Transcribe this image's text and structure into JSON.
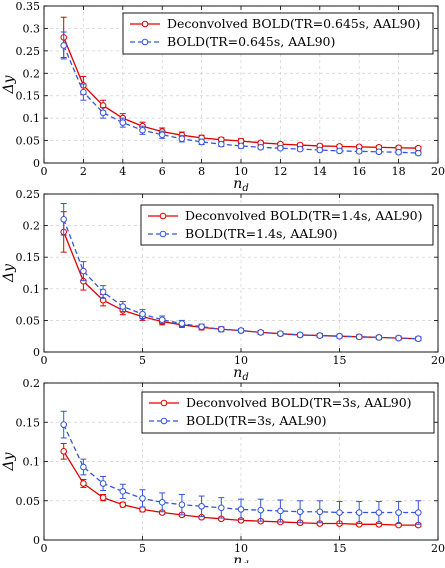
{
  "chart_data": [
    {
      "type": "line",
      "xlabel": "n_d",
      "ylabel": "Δy",
      "xlim": [
        0,
        20
      ],
      "ylim": [
        0,
        0.35
      ],
      "xticks": [
        "0",
        "2",
        "4",
        "6",
        "8",
        "10",
        "12",
        "14",
        "16",
        "18",
        "20"
      ],
      "yticks": [
        "0",
        "0.05",
        "0.1",
        "0.15",
        "0.2",
        "0.25",
        "0.3",
        "0.35"
      ],
      "grid": true,
      "legend_position": "top-right",
      "series": [
        {
          "name": "Deconvolved BOLD(TR=0.645s, AAL90)",
          "color": "#e00000",
          "style": "solid",
          "x": [
            1,
            2,
            3,
            4,
            5,
            6,
            7,
            8,
            9,
            10,
            11,
            12,
            13,
            14,
            15,
            16,
            17,
            18,
            19
          ],
          "y": [
            0.28,
            0.173,
            0.128,
            0.1,
            0.082,
            0.07,
            0.062,
            0.056,
            0.052,
            0.049,
            0.045,
            0.042,
            0.04,
            0.038,
            0.037,
            0.036,
            0.035,
            0.034,
            0.033
          ],
          "err": [
            0.045,
            0.02,
            0.012,
            0.01,
            0.009,
            0.008,
            0.007,
            0.006,
            0.005,
            0.005,
            0.004,
            0.004,
            0.004,
            0.004,
            0.004,
            0.004,
            0.004,
            0.004,
            0.004
          ]
        },
        {
          "name": "BOLD(TR=0.645s, AAL90)",
          "color": "#3355dd",
          "style": "dashed",
          "x": [
            1,
            2,
            3,
            4,
            5,
            6,
            7,
            8,
            9,
            10,
            11,
            12,
            13,
            14,
            15,
            16,
            17,
            18,
            19
          ],
          "y": [
            0.262,
            0.158,
            0.112,
            0.09,
            0.073,
            0.063,
            0.054,
            0.047,
            0.042,
            0.038,
            0.035,
            0.033,
            0.031,
            0.029,
            0.027,
            0.026,
            0.025,
            0.024,
            0.022
          ],
          "err": [
            0.03,
            0.018,
            0.012,
            0.01,
            0.009,
            0.008,
            0.007,
            0.006,
            0.005,
            0.005,
            0.004,
            0.004,
            0.004,
            0.004,
            0.004,
            0.004,
            0.004,
            0.004,
            0.004
          ]
        }
      ]
    },
    {
      "type": "line",
      "xlabel": "n_d",
      "ylabel": "Δy",
      "xlim": [
        0,
        20
      ],
      "ylim": [
        0,
        0.25
      ],
      "xticks": [
        "0",
        "5",
        "10",
        "15",
        "20"
      ],
      "yticks": [
        "0",
        "0.05",
        "0.1",
        "0.15",
        "0.2",
        "0.25"
      ],
      "grid": true,
      "legend_position": "top-right",
      "series": [
        {
          "name": "Deconvolved BOLD(TR=1.4s, AAL90)",
          "color": "#e00000",
          "style": "solid",
          "x": [
            1,
            2,
            3,
            4,
            5,
            6,
            7,
            8,
            9,
            10,
            11,
            12,
            13,
            14,
            15,
            16,
            17,
            18,
            19
          ],
          "y": [
            0.19,
            0.112,
            0.082,
            0.066,
            0.056,
            0.048,
            0.043,
            0.039,
            0.036,
            0.034,
            0.031,
            0.029,
            0.027,
            0.026,
            0.025,
            0.024,
            0.023,
            0.022,
            0.021
          ],
          "err": [
            0.032,
            0.014,
            0.009,
            0.007,
            0.006,
            0.005,
            0.004,
            0.004,
            0.003,
            0.003,
            0.003,
            0.003,
            0.003,
            0.003,
            0.003,
            0.003,
            0.003,
            0.003,
            0.003
          ]
        },
        {
          "name": "BOLD(TR=1.4s, AAL90)",
          "color": "#3355dd",
          "style": "dashed",
          "x": [
            1,
            2,
            3,
            4,
            5,
            6,
            7,
            8,
            9,
            10,
            11,
            12,
            13,
            14,
            15,
            16,
            17,
            18,
            19
          ],
          "y": [
            0.21,
            0.128,
            0.095,
            0.072,
            0.06,
            0.051,
            0.045,
            0.04,
            0.036,
            0.034,
            0.031,
            0.029,
            0.027,
            0.026,
            0.025,
            0.024,
            0.023,
            0.022,
            0.021
          ],
          "err": [
            0.025,
            0.015,
            0.01,
            0.008,
            0.007,
            0.006,
            0.005,
            0.004,
            0.004,
            0.003,
            0.003,
            0.003,
            0.003,
            0.003,
            0.003,
            0.003,
            0.003,
            0.003,
            0.003
          ]
        }
      ]
    },
    {
      "type": "line",
      "xlabel": "n_d",
      "ylabel": "Δy",
      "xlim": [
        0,
        20
      ],
      "ylim": [
        0,
        0.2
      ],
      "xticks": [
        "0",
        "5",
        "10",
        "15",
        "20"
      ],
      "yticks": [
        "0",
        "0.05",
        "0.1",
        "0.15",
        "0.2"
      ],
      "grid": true,
      "legend_position": "top-right",
      "series": [
        {
          "name": "Deconvolved BOLD(TR=3s, AAL90)",
          "color": "#e00000",
          "style": "solid",
          "x": [
            1,
            2,
            3,
            4,
            5,
            6,
            7,
            8,
            9,
            10,
            11,
            12,
            13,
            14,
            15,
            16,
            17,
            18,
            19
          ],
          "y": [
            0.113,
            0.072,
            0.054,
            0.045,
            0.039,
            0.035,
            0.032,
            0.029,
            0.027,
            0.025,
            0.024,
            0.023,
            0.022,
            0.021,
            0.021,
            0.02,
            0.02,
            0.019,
            0.019
          ],
          "err": [
            0.01,
            0.005,
            0.004,
            0.003,
            0.003,
            0.002,
            0.002,
            0.002,
            0.002,
            0.002,
            0.002,
            0.002,
            0.002,
            0.002,
            0.002,
            0.002,
            0.002,
            0.002,
            0.002
          ]
        },
        {
          "name": "BOLD(TR=3s, AAL90)",
          "color": "#3355dd",
          "style": "dashed",
          "x": [
            1,
            2,
            3,
            4,
            5,
            6,
            7,
            8,
            9,
            10,
            11,
            12,
            13,
            14,
            15,
            16,
            17,
            18,
            19
          ],
          "y": [
            0.147,
            0.093,
            0.072,
            0.062,
            0.053,
            0.048,
            0.045,
            0.043,
            0.041,
            0.039,
            0.038,
            0.037,
            0.036,
            0.036,
            0.035,
            0.035,
            0.035,
            0.035,
            0.035
          ],
          "err": [
            0.017,
            0.01,
            0.009,
            0.009,
            0.011,
            0.012,
            0.013,
            0.013,
            0.013,
            0.013,
            0.014,
            0.014,
            0.014,
            0.014,
            0.014,
            0.014,
            0.014,
            0.014,
            0.015
          ]
        }
      ]
    }
  ]
}
